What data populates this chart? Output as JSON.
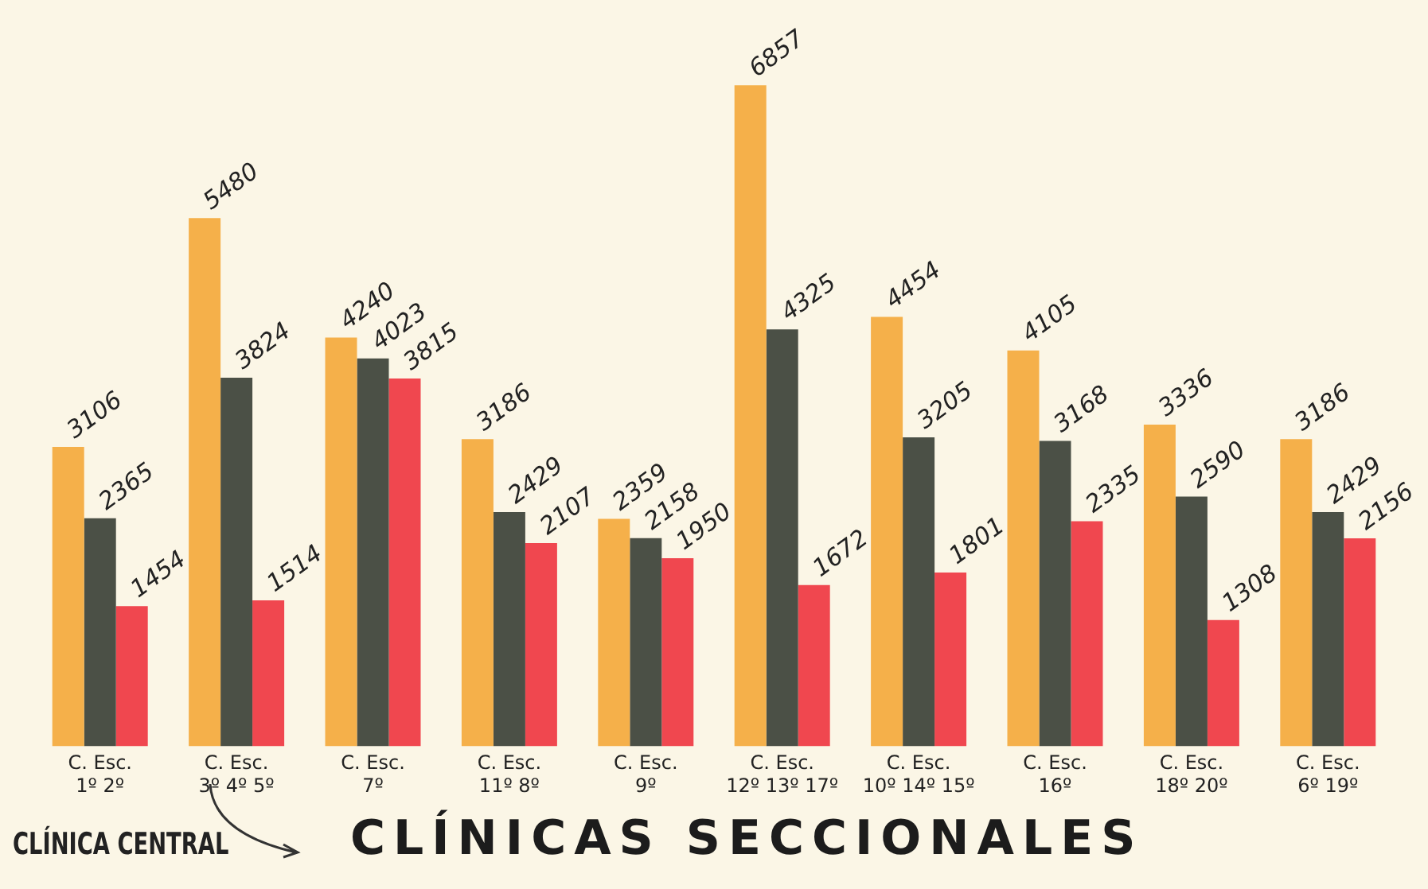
{
  "chart_data": {
    "type": "bar",
    "categories": [
      "C. Esc.\n1º 2º",
      "C. Esc.\n3º 4º 5º",
      "C. Esc.\n7º",
      "C. Esc.\n11º 8º",
      "C. Esc.\n9º",
      "C. Esc.\n12º 13º 17º",
      "C. Esc.\n10º 14º 15º",
      "C. Esc.\n16º",
      "C. Esc.\n18º 20º",
      "C. Esc.\n6º 19º"
    ],
    "series": [
      {
        "color": "#f5b04a",
        "values": [
          3106,
          5480,
          4240,
          3186,
          2359,
          6857,
          4454,
          4105,
          3336,
          3186
        ]
      },
      {
        "color": "#4b5046",
        "values": [
          2365,
          3824,
          4023,
          2429,
          2158,
          4325,
          3205,
          3168,
          2590,
          2429
        ]
      },
      {
        "color": "#f0474f",
        "values": [
          1454,
          1514,
          3815,
          2107,
          1950,
          1672,
          1801,
          2335,
          1308,
          2156
        ]
      }
    ],
    "tick_labels": "x",
    "grid": false,
    "legend": false,
    "data_labels": true,
    "annotations": [
      "CLÍNICA CENTRAL",
      "CLÍNICAS SECCIONALES"
    ]
  }
}
